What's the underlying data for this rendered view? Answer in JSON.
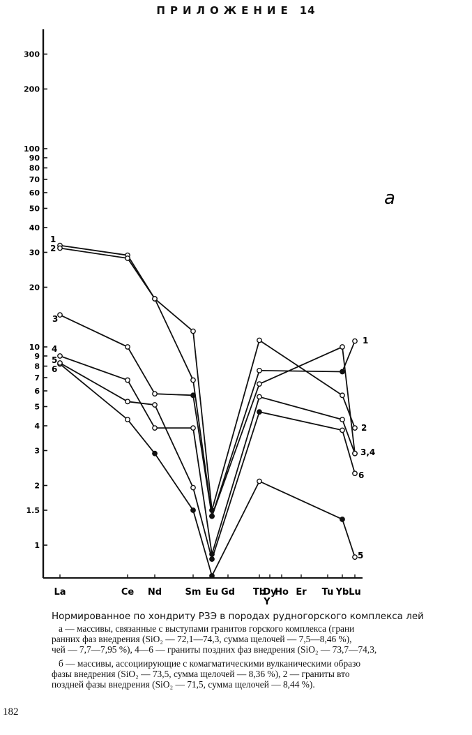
{
  "page": {
    "header_title": "ПРИЛОЖЕНИЕ",
    "header_number": "14",
    "page_number": "182",
    "panel_letter": "а"
  },
  "caption": {
    "title": "Нормированное по хондриту РЗЭ в породах рудногорского комплекса лей",
    "lines": [
      "а — массивы, связанные с выступами гранитов горского комплекса (грани",
      "ранних фаз внедрения (SiO₂ — 72,1—74,3, сумма щелочей — 7,5—8,46 %),",
      "чей — 7,7—7,95 %), 4—6 — граниты поздних фаз внедрения (SiO₂ — 73,7—74,3,",
      "б — массивы, ассоциирующие с комагматическими вулканическими образо",
      "фазы внедрения (SiO₂ — 73,5, сумма щелочей — 8,36 %), 2 — граниты вто",
      "поздней фазы внедрения (SiO₂ — 71,5, сумма щелочей — 8,44 %)."
    ]
  },
  "chart_data": {
    "type": "line",
    "y_scale": "log",
    "ylim": [
      0.7,
      450
    ],
    "y_ticks": [
      1,
      1.5,
      2,
      3,
      4,
      5,
      6,
      7,
      8,
      9,
      10,
      20,
      30,
      40,
      50,
      60,
      70,
      80,
      90,
      100,
      200,
      300
    ],
    "y_tick_labels": [
      "1",
      "1.5",
      "2",
      "3",
      "4",
      "5",
      "6",
      "7",
      "8",
      "9",
      "10",
      "20",
      "30",
      "40",
      "50",
      "60",
      "70",
      "80",
      "90",
      "100",
      "200",
      "300"
    ],
    "x_categories": [
      "La",
      "Ce",
      "Nd",
      "Sm",
      "Eu",
      "Gd",
      "Tb",
      "Dy",
      "Ho",
      "Er",
      "Tu",
      "Yb",
      "Lu"
    ],
    "x_extra_label": "Y",
    "series": [
      {
        "name": "1",
        "points": [
          [
            "La",
            32.5
          ],
          [
            "Ce",
            29
          ],
          [
            "Nd",
            17.5
          ],
          [
            "Sm",
            12
          ],
          [
            "Eu",
            1.5
          ],
          [
            "Tb",
            10.8
          ],
          [
            "Yb",
            5.7
          ],
          [
            "Lu",
            3.9
          ]
        ]
      },
      {
        "name": "2",
        "points": [
          [
            "La",
            31.5
          ],
          [
            "Ce",
            28
          ],
          [
            "Nd",
            17.5
          ],
          [
            "Sm",
            6.8
          ],
          [
            "Eu",
            1.4
          ],
          [
            "Tb",
            7.6
          ],
          [
            "Yb",
            7.5
          ],
          [
            "Lu",
            10.7
          ]
        ]
      },
      {
        "name": "3",
        "points": [
          [
            "La",
            14.5
          ],
          [
            "Ce",
            10
          ],
          [
            "Nd",
            5.8
          ],
          [
            "Sm",
            5.7
          ],
          [
            "Eu",
            1.4
          ],
          [
            "Tb",
            6.5
          ],
          [
            "Yb",
            10
          ],
          [
            "Lu",
            2.9
          ]
        ]
      },
      {
        "name": "4",
        "points": [
          [
            "La",
            9
          ],
          [
            "Ce",
            6.8
          ],
          [
            "Nd",
            3.9
          ],
          [
            "Sm",
            3.9
          ],
          [
            "Eu",
            0.9
          ],
          [
            "Tb",
            5.6
          ],
          [
            "Yb",
            4.3
          ],
          [
            "Lu",
            2.9
          ]
        ]
      },
      {
        "name": "5",
        "points": [
          [
            "La",
            8.2
          ],
          [
            "Ce",
            4.3
          ],
          [
            "Nd",
            2.9
          ],
          [
            "Sm",
            1.5
          ],
          [
            "Eu",
            0.7
          ],
          [
            "Tb",
            2.1
          ],
          [
            "Yb",
            1.35
          ],
          [
            "Lu",
            0.87
          ]
        ]
      },
      {
        "name": "6",
        "points": [
          [
            "La",
            8.3
          ],
          [
            "Ce",
            5.3
          ],
          [
            "Nd",
            5.1
          ],
          [
            "Sm",
            1.95
          ],
          [
            "Eu",
            0.85
          ],
          [
            "Tb",
            4.7
          ],
          [
            "Yb",
            3.8
          ],
          [
            "Lu",
            2.3
          ]
        ]
      }
    ]
  }
}
